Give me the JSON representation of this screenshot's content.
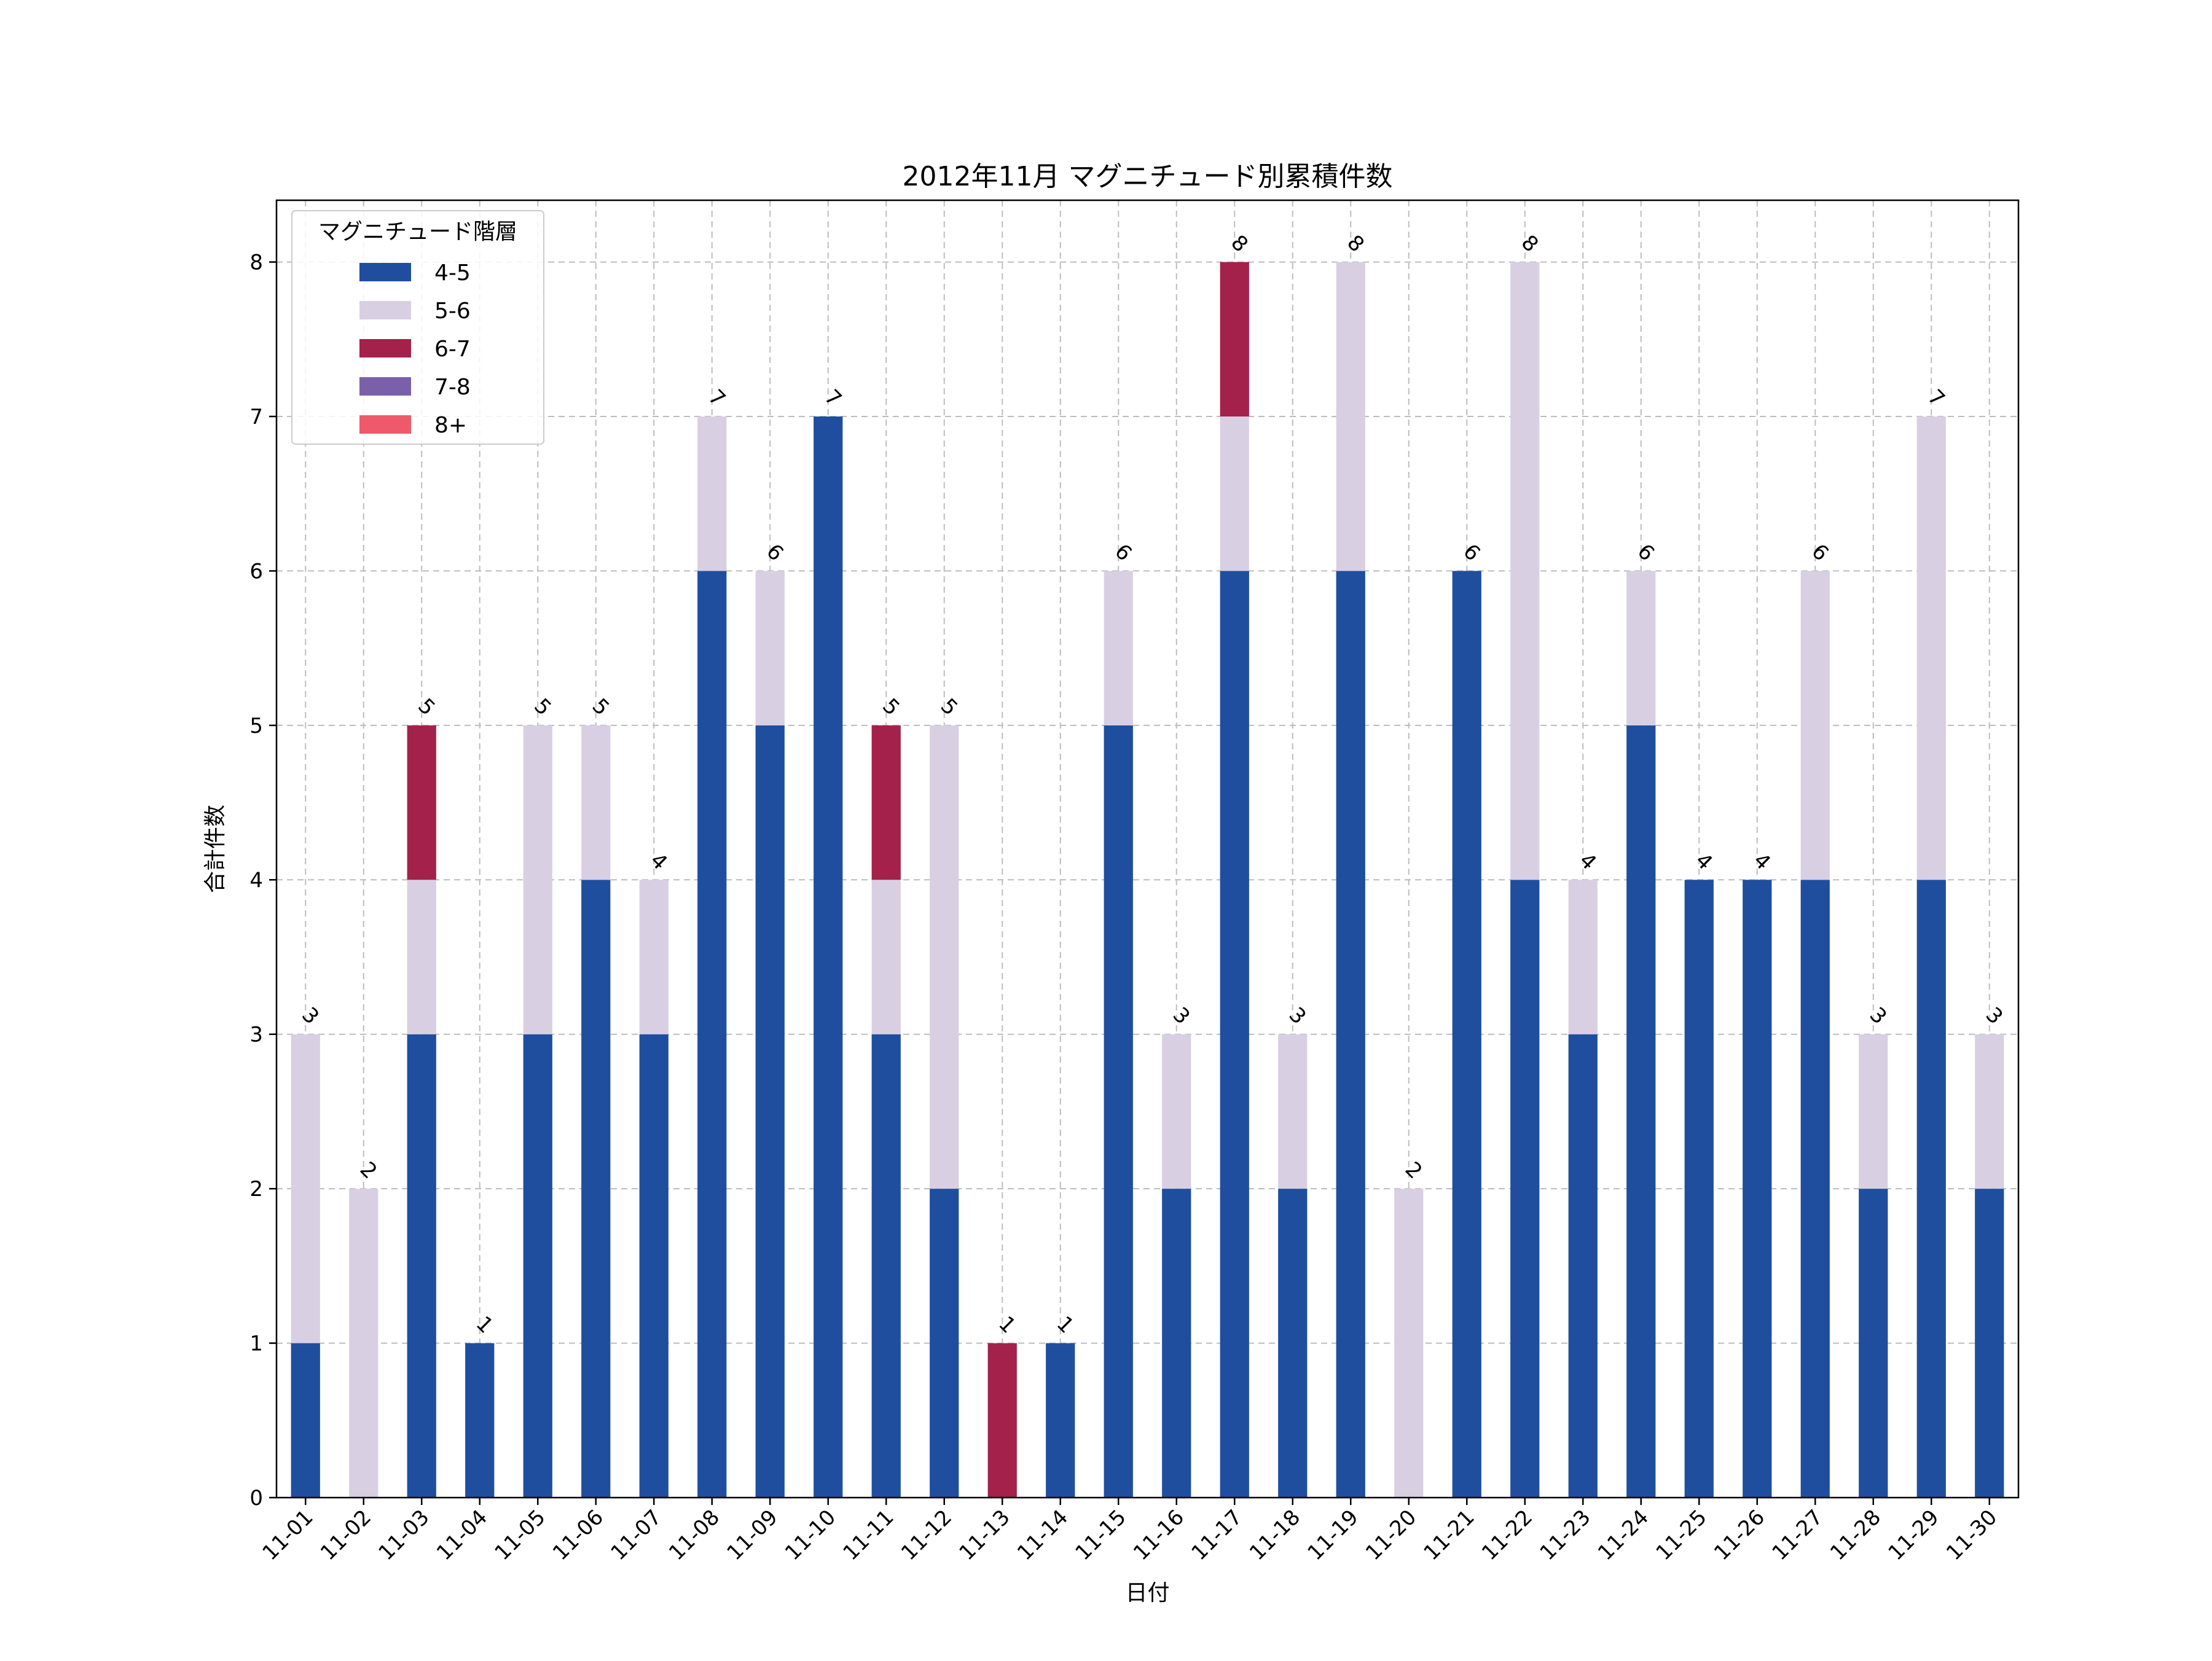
{
  "chart_data": {
    "type": "bar",
    "stacked": true,
    "title": "2012年11月 マグニチュード別累積件数",
    "xlabel": "日付",
    "ylabel": "合計件数",
    "ylim": [
      0,
      8.4
    ],
    "yticks": [
      0,
      1,
      2,
      3,
      4,
      5,
      6,
      7,
      8
    ],
    "grid": true,
    "legend": {
      "title": "マグニチュード階層",
      "placement": "top-left"
    },
    "categories": [
      "11-01",
      "11-02",
      "11-03",
      "11-04",
      "11-05",
      "11-06",
      "11-07",
      "11-08",
      "11-09",
      "11-10",
      "11-11",
      "11-12",
      "11-13",
      "11-14",
      "11-15",
      "11-16",
      "11-17",
      "11-18",
      "11-19",
      "11-20",
      "11-21",
      "11-22",
      "11-23",
      "11-24",
      "11-25",
      "11-26",
      "11-27",
      "11-28",
      "11-29",
      "11-30"
    ],
    "series": [
      {
        "name": "4-5",
        "color": "#1f4e9e",
        "values": [
          1,
          0,
          3,
          1,
          3,
          4,
          3,
          6,
          5,
          7,
          3,
          2,
          0,
          1,
          5,
          2,
          6,
          2,
          6,
          0,
          6,
          4,
          3,
          5,
          4,
          4,
          4,
          2,
          4,
          2
        ]
      },
      {
        "name": "5-6",
        "color": "#d9cfe3",
        "values": [
          2,
          2,
          1,
          0,
          2,
          1,
          1,
          1,
          1,
          0,
          1,
          3,
          0,
          0,
          1,
          1,
          1,
          1,
          2,
          2,
          0,
          4,
          1,
          1,
          0,
          0,
          2,
          1,
          3,
          1
        ]
      },
      {
        "name": "6-7",
        "color": "#a3214a",
        "values": [
          0,
          0,
          1,
          0,
          0,
          0,
          0,
          0,
          0,
          0,
          1,
          0,
          1,
          0,
          0,
          0,
          1,
          0,
          0,
          0,
          0,
          0,
          0,
          0,
          0,
          0,
          0,
          0,
          0,
          0
        ]
      },
      {
        "name": "7-8",
        "color": "#7a60aa",
        "values": [
          0,
          0,
          0,
          0,
          0,
          0,
          0,
          0,
          0,
          0,
          0,
          0,
          0,
          0,
          0,
          0,
          0,
          0,
          0,
          0,
          0,
          0,
          0,
          0,
          0,
          0,
          0,
          0,
          0,
          0
        ]
      },
      {
        "name": "8+",
        "color": "#ee5a6a",
        "values": [
          0,
          0,
          0,
          0,
          0,
          0,
          0,
          0,
          0,
          0,
          0,
          0,
          0,
          0,
          0,
          0,
          0,
          0,
          0,
          0,
          0,
          0,
          0,
          0,
          0,
          0,
          0,
          0,
          0,
          0
        ]
      }
    ],
    "totals": [
      3,
      2,
      5,
      1,
      5,
      5,
      4,
      7,
      6,
      7,
      5,
      5,
      1,
      1,
      6,
      3,
      8,
      3,
      8,
      2,
      6,
      8,
      4,
      6,
      4,
      4,
      6,
      3,
      7,
      3
    ]
  }
}
